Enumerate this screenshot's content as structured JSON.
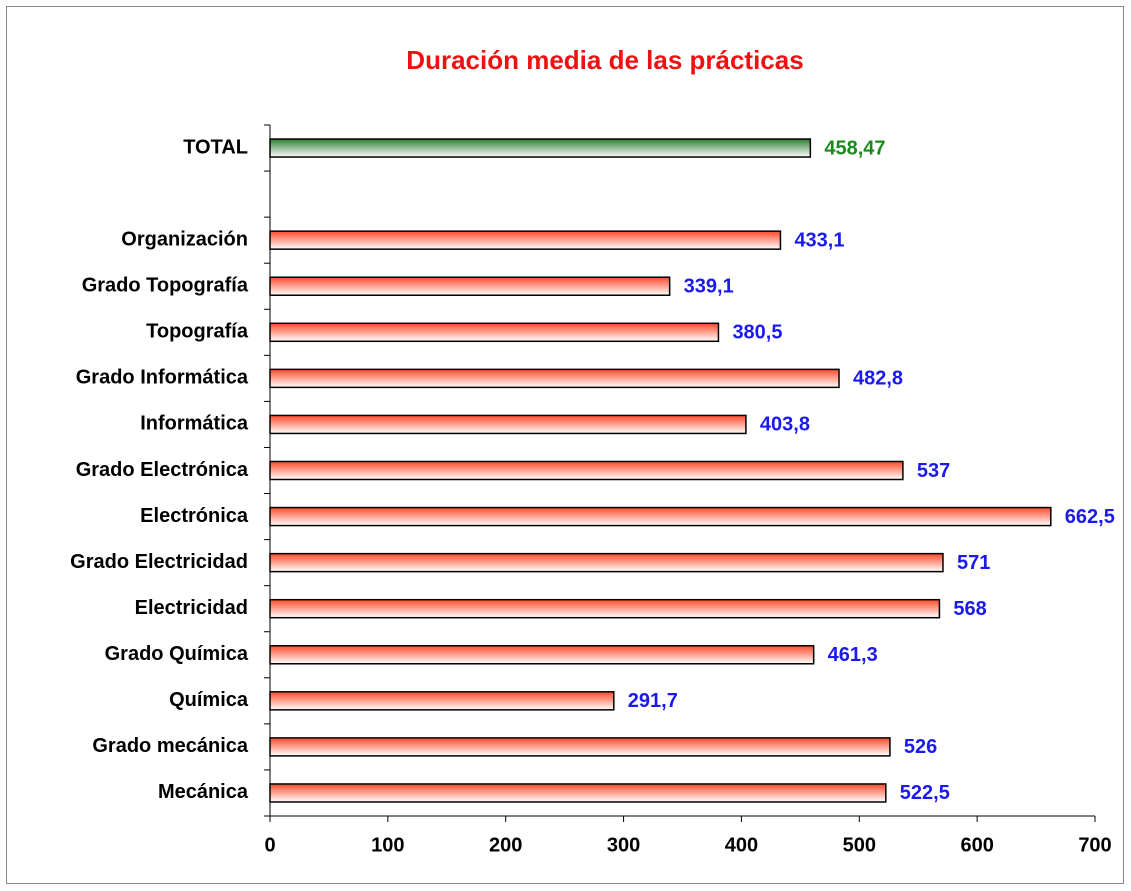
{
  "chart_data": {
    "type": "barh",
    "title": "Duración media de las prácticas",
    "categories": [
      "TOTAL",
      null,
      "Organización",
      "Grado Topografía",
      "Topografía",
      "Grado Informática",
      "Informática",
      "Grado Electrónica",
      "Electrónica",
      "Grado Electricidad",
      "Electricidad",
      "Grado Química",
      "Química",
      "Grado mecánica",
      "Mecánica"
    ],
    "values": [
      458.47,
      null,
      433.1,
      339.1,
      380.5,
      482.8,
      403.8,
      537,
      662.5,
      571,
      568,
      461.3,
      291.7,
      526,
      522.5
    ],
    "value_labels": [
      "458,47",
      null,
      "433,1",
      "339,1",
      "380,5",
      "482,8",
      "403,8",
      "537",
      "662,5",
      "571",
      "568",
      "461,3",
      "291,7",
      "526",
      "522,5"
    ],
    "bar_colors": [
      "#2e7d32",
      null,
      "#ff4a2a",
      "#ff4a2a",
      "#ff4a2a",
      "#ff4a2a",
      "#ff4a2a",
      "#ff4a2a",
      "#ff4a2a",
      "#ff4a2a",
      "#ff4a2a",
      "#ff4a2a",
      "#ff4a2a",
      "#ff4a2a",
      "#ff4a2a"
    ],
    "label_colors": [
      "#1a8a1a",
      null,
      "#1a1aee",
      "#1a1aee",
      "#1a1aee",
      "#1a1aee",
      "#1a1aee",
      "#1a1aee",
      "#1a1aee",
      "#1a1aee",
      "#1a1aee",
      "#1a1aee",
      "#1a1aee",
      "#1a1aee",
      "#1a1aee"
    ],
    "title_color": "#ee1111",
    "xlim": [
      0,
      700
    ],
    "xticks": [
      0,
      100,
      200,
      300,
      400,
      500,
      600,
      700
    ],
    "grid": false
  }
}
